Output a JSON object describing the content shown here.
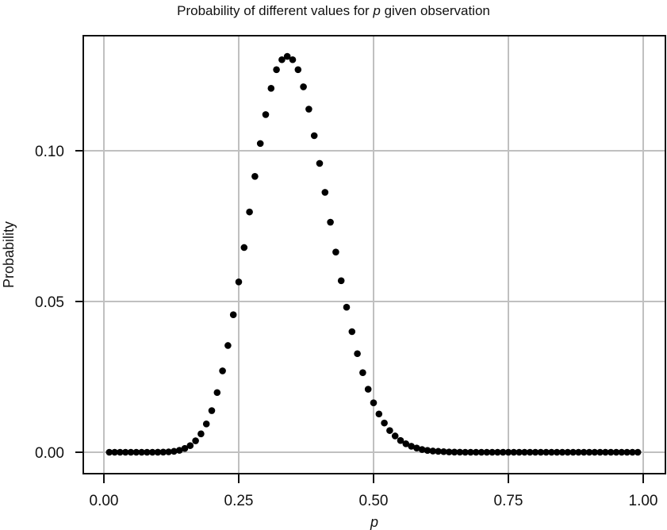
{
  "chart_data": {
    "type": "scatter",
    "title": "Probability of different values for p given observation",
    "title_parts": {
      "before": "Probability of different values for ",
      "var": "p",
      "after": " given observation"
    },
    "xlabel": "p",
    "ylabel": "Probability",
    "xlim": [
      -0.04,
      1.04
    ],
    "ylim": [
      -0.007,
      0.137
    ],
    "x_ticks": [
      0.0,
      0.25,
      0.5,
      0.75,
      1.0
    ],
    "x_tick_labels": [
      "0.00",
      "0.25",
      "0.50",
      "0.75",
      "1.00"
    ],
    "y_ticks": [
      0.0,
      0.05,
      0.1
    ],
    "y_tick_labels": [
      "0.00",
      "0.05",
      "0.10"
    ],
    "grid": true,
    "legend": null,
    "marker_color": "#000000",
    "grid_color": "#c0c0c0",
    "x": [
      0.01,
      0.02,
      0.03,
      0.04,
      0.05,
      0.06,
      0.07,
      0.08,
      0.09,
      0.1,
      0.11,
      0.12,
      0.13,
      0.14,
      0.15,
      0.16,
      0.17,
      0.18,
      0.19,
      0.2,
      0.21,
      0.22,
      0.23,
      0.24,
      0.25,
      0.26,
      0.27,
      0.28,
      0.29,
      0.3,
      0.31,
      0.32,
      0.33,
      0.34,
      0.35,
      0.36,
      0.37,
      0.38,
      0.39,
      0.4,
      0.41,
      0.42,
      0.43,
      0.44,
      0.45,
      0.46,
      0.47,
      0.48,
      0.49,
      0.5,
      0.51,
      0.52,
      0.53,
      0.54,
      0.55,
      0.56,
      0.57,
      0.58,
      0.59,
      0.6,
      0.61,
      0.62,
      0.63,
      0.64,
      0.65,
      0.66,
      0.67,
      0.68,
      0.69,
      0.7,
      0.71,
      0.72,
      0.73,
      0.74,
      0.75,
      0.76,
      0.77,
      0.78,
      0.79,
      0.8,
      0.81,
      0.82,
      0.83,
      0.84,
      0.85,
      0.86,
      0.87,
      0.88,
      0.89,
      0.9,
      0.91,
      0.92,
      0.93,
      0.94,
      0.95,
      0.96,
      0.97,
      0.98,
      0.99
    ],
    "y": [
      0,
      0,
      0,
      0,
      0,
      0,
      0,
      0,
      0,
      2e-05,
      4e-05,
      0.00013,
      0.0003,
      0.00064,
      0.00126,
      0.0022,
      0.0038,
      0.0061,
      0.0094,
      0.0138,
      0.0198,
      0.027,
      0.0354,
      0.0456,
      0.0565,
      0.0679,
      0.0797,
      0.0915,
      0.1024,
      0.112,
      0.1207,
      0.1269,
      0.1302,
      0.1313,
      0.1302,
      0.1269,
      0.1212,
      0.1138,
      0.105,
      0.0958,
      0.0862,
      0.0763,
      0.0664,
      0.0569,
      0.0481,
      0.04,
      0.0327,
      0.0264,
      0.0209,
      0.0164,
      0.0127,
      0.0097,
      0.0072,
      0.0054,
      0.0039,
      0.0028,
      0.002,
      0.0014,
      0.0009,
      0.0006,
      0.0004,
      0.0003,
      0.0002,
      0.0001,
      5e-05,
      3e-05,
      0,
      0,
      0,
      0,
      0,
      0,
      0,
      0,
      0,
      0,
      0,
      0,
      0,
      0,
      0,
      0,
      0,
      0,
      0,
      0,
      0,
      0,
      0,
      0,
      0,
      0,
      0,
      0,
      0,
      0,
      0,
      0,
      0
    ]
  }
}
